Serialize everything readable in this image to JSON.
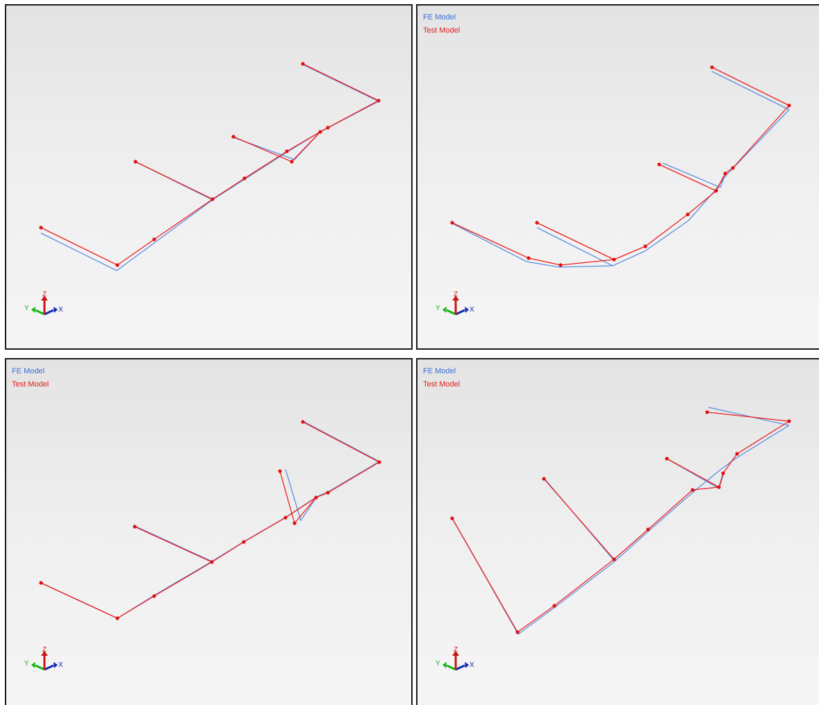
{
  "legend": {
    "fe_label": "FE Model",
    "test_label": "Test Model"
  },
  "colors": {
    "fe": "#5b8ee0",
    "test": "#ee1c1c",
    "node": "#e01010",
    "triad_x": "#1428b4",
    "triad_y": "#18b418",
    "triad_z": "#c81414"
  },
  "axis_triad": {
    "x_label": "X",
    "y_label": "Y",
    "z_label": "Z"
  },
  "viewports": [
    {
      "id": "vp1",
      "show_legend": false
    },
    {
      "id": "vp2",
      "show_legend": true
    },
    {
      "id": "vp3",
      "show_legend": true
    },
    {
      "id": "vp4",
      "show_legend": true
    }
  ]
}
